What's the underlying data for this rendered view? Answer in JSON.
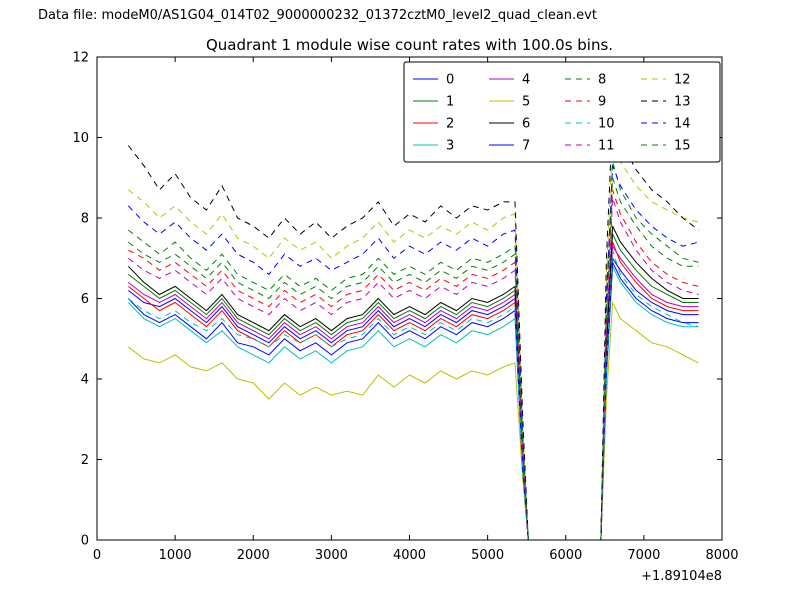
{
  "header": {
    "data_file": "Data file: modeM0/AS1G04_014T02_9000000232_01372cztM0_level2_quad_clean.evt"
  },
  "chart_data": {
    "type": "line",
    "title": "Quadrant 1 module wise count rates with 100.0s bins.",
    "xlabel": "",
    "ylabel": "",
    "xlim": [
      0,
      8000
    ],
    "ylim": [
      0,
      12
    ],
    "x_ticks": [
      0,
      1000,
      2000,
      3000,
      4000,
      5000,
      6000,
      7000,
      8000
    ],
    "x_tick_labels": [
      "0",
      "1000",
      "2000",
      "3000",
      "4000",
      "5000",
      "6000",
      "7000",
      "8000"
    ],
    "y_ticks": [
      0,
      2,
      4,
      6,
      8,
      10,
      12
    ],
    "y_tick_labels": [
      "0",
      "2",
      "4",
      "6",
      "8",
      "10",
      "12"
    ],
    "x_offset_label": "+1.89104e8",
    "grid": false,
    "legend_position": "upper center",
    "legend_columns": 4,
    "x": [
      400,
      600,
      800,
      1000,
      1200,
      1400,
      1600,
      1800,
      2000,
      2200,
      2400,
      2600,
      2800,
      3000,
      3200,
      3400,
      3600,
      3800,
      4000,
      4200,
      4400,
      4600,
      4800,
      5000,
      5200,
      5350,
      5450,
      5520,
      5800,
      6200,
      6450,
      6520,
      6600,
      6700,
      6900,
      7100,
      7300,
      7500,
      7700
    ],
    "series": [
      {
        "name": "0",
        "color": "#0000FF",
        "style": "solid",
        "values": [
          6.2,
          5.9,
          5.8,
          6.0,
          5.7,
          5.4,
          5.8,
          5.3,
          5.1,
          4.9,
          5.3,
          5.0,
          5.2,
          4.9,
          5.2,
          5.3,
          5.7,
          5.3,
          5.5,
          5.3,
          5.6,
          5.4,
          5.7,
          5.6,
          5.8,
          6.0,
          1.8,
          0,
          0,
          0,
          0,
          4.4,
          7.0,
          6.7,
          6.2,
          5.9,
          5.7,
          5.6,
          5.6
        ]
      },
      {
        "name": "1",
        "color": "#008000",
        "style": "solid",
        "values": [
          6.6,
          6.3,
          6.0,
          6.2,
          5.9,
          5.6,
          6.0,
          5.5,
          5.3,
          5.1,
          5.5,
          5.2,
          5.4,
          5.1,
          5.4,
          5.5,
          5.9,
          5.5,
          5.7,
          5.5,
          5.8,
          5.6,
          5.9,
          5.8,
          6.0,
          6.2,
          1.9,
          0,
          0,
          0,
          0,
          4.7,
          7.6,
          7.2,
          6.7,
          6.3,
          6.1,
          5.9,
          5.9
        ]
      },
      {
        "name": "2",
        "color": "#FF0000",
        "style": "solid",
        "values": [
          6.3,
          6.0,
          5.7,
          5.9,
          5.6,
          5.3,
          5.7,
          5.2,
          5.0,
          4.8,
          5.2,
          4.9,
          5.1,
          4.8,
          5.1,
          5.2,
          5.6,
          5.2,
          5.4,
          5.2,
          5.5,
          5.3,
          5.6,
          5.5,
          5.7,
          5.9,
          1.8,
          0,
          0,
          0,
          0,
          4.5,
          7.4,
          6.9,
          6.4,
          6.0,
          5.8,
          5.7,
          5.7
        ]
      },
      {
        "name": "3",
        "color": "#00BFBF",
        "style": "solid",
        "values": [
          5.9,
          5.5,
          5.3,
          5.5,
          5.2,
          4.9,
          5.2,
          4.8,
          4.6,
          4.4,
          4.8,
          4.5,
          4.7,
          4.4,
          4.7,
          4.8,
          5.2,
          4.8,
          5.0,
          4.8,
          5.1,
          4.9,
          5.2,
          5.1,
          5.3,
          5.5,
          1.6,
          0,
          0,
          0,
          0,
          4.0,
          6.8,
          6.4,
          5.9,
          5.6,
          5.4,
          5.3,
          5.3
        ]
      },
      {
        "name": "4",
        "color": "#BF00BF",
        "style": "solid",
        "values": [
          6.4,
          6.1,
          5.9,
          6.1,
          5.8,
          5.5,
          5.9,
          5.4,
          5.2,
          5.0,
          5.4,
          5.1,
          5.3,
          5.0,
          5.3,
          5.4,
          5.8,
          5.4,
          5.6,
          5.4,
          5.7,
          5.5,
          5.8,
          5.7,
          5.9,
          6.1,
          1.9,
          0,
          0,
          0,
          0,
          4.6,
          7.3,
          7.0,
          6.5,
          6.1,
          5.9,
          5.8,
          5.8
        ]
      },
      {
        "name": "5",
        "color": "#BFBF00",
        "style": "solid",
        "values": [
          4.8,
          4.5,
          4.4,
          4.6,
          4.3,
          4.2,
          4.4,
          4.0,
          3.9,
          3.5,
          3.9,
          3.6,
          3.8,
          3.6,
          3.7,
          3.6,
          4.1,
          3.8,
          4.1,
          3.9,
          4.2,
          4.0,
          4.2,
          4.1,
          4.3,
          4.4,
          1.5,
          0,
          0,
          0,
          0,
          3.5,
          5.9,
          5.5,
          5.2,
          4.9,
          4.8,
          4.6,
          4.4
        ]
      },
      {
        "name": "6",
        "color": "#000000",
        "style": "solid",
        "values": [
          6.8,
          6.4,
          6.1,
          6.3,
          6.0,
          5.7,
          6.1,
          5.6,
          5.4,
          5.2,
          5.6,
          5.3,
          5.5,
          5.2,
          5.5,
          5.6,
          6.0,
          5.6,
          5.8,
          5.6,
          5.9,
          5.7,
          6.0,
          5.9,
          6.1,
          6.3,
          2.0,
          0,
          0,
          0,
          0,
          4.8,
          7.8,
          7.4,
          6.9,
          6.5,
          6.2,
          6.0,
          6.0
        ]
      },
      {
        "name": "7",
        "color": "#0000FF",
        "style": "solid",
        "values": [
          6.0,
          5.6,
          5.4,
          5.6,
          5.3,
          5.0,
          5.4,
          4.9,
          4.8,
          4.6,
          5.0,
          4.7,
          4.9,
          4.6,
          4.9,
          5.0,
          5.4,
          5.0,
          5.2,
          5.0,
          5.3,
          5.1,
          5.4,
          5.3,
          5.5,
          5.7,
          1.7,
          0,
          0,
          0,
          0,
          4.2,
          6.9,
          6.5,
          6.0,
          5.7,
          5.5,
          5.4,
          5.4
        ]
      },
      {
        "name": "8",
        "color": "#008000",
        "style": "dashed",
        "values": [
          7.7,
          7.4,
          7.1,
          7.4,
          7.0,
          6.7,
          7.1,
          6.6,
          6.4,
          6.2,
          6.6,
          6.3,
          6.5,
          6.2,
          6.5,
          6.6,
          7.0,
          6.6,
          6.8,
          6.6,
          6.9,
          6.7,
          7.0,
          6.9,
          7.1,
          7.3,
          2.4,
          0,
          0,
          0,
          0,
          5.8,
          9.4,
          8.7,
          8.0,
          7.6,
          7.3,
          7.0,
          6.9
        ]
      },
      {
        "name": "9",
        "color": "#FF0000",
        "style": "dashed",
        "values": [
          7.2,
          7.0,
          6.7,
          6.9,
          6.6,
          6.3,
          6.7,
          6.2,
          6.0,
          5.8,
          6.2,
          5.9,
          6.1,
          5.8,
          6.1,
          6.2,
          6.6,
          6.2,
          6.4,
          6.2,
          6.5,
          6.3,
          6.6,
          6.5,
          6.7,
          6.9,
          2.2,
          0,
          0,
          0,
          0,
          5.3,
          8.7,
          8.1,
          7.4,
          6.9,
          6.6,
          6.4,
          6.3
        ]
      },
      {
        "name": "10",
        "color": "#00BFBF",
        "style": "dashed",
        "values": [
          6.0,
          5.7,
          5.5,
          5.7,
          5.4,
          5.2,
          5.5,
          5.1,
          5.0,
          4.8,
          5.1,
          4.9,
          5.1,
          4.8,
          5.0,
          5.1,
          5.5,
          5.1,
          5.3,
          5.1,
          5.4,
          5.2,
          5.5,
          5.4,
          5.6,
          5.8,
          1.7,
          0,
          0,
          0,
          0,
          4.3,
          7.2,
          6.6,
          6.1,
          5.8,
          5.6,
          5.4,
          5.3
        ]
      },
      {
        "name": "11",
        "color": "#BF00BF",
        "style": "dashed",
        "values": [
          7.0,
          6.7,
          6.5,
          6.7,
          6.4,
          6.1,
          6.5,
          6.0,
          5.8,
          5.6,
          6.0,
          5.7,
          5.9,
          5.6,
          5.9,
          6.0,
          6.4,
          6.0,
          6.2,
          6.0,
          6.3,
          6.1,
          6.4,
          6.3,
          6.5,
          6.7,
          2.1,
          0,
          0,
          0,
          0,
          5.1,
          8.5,
          7.9,
          7.2,
          6.7,
          6.4,
          6.2,
          6.1
        ]
      },
      {
        "name": "12",
        "color": "#BFBF00",
        "style": "dashed",
        "values": [
          8.7,
          8.4,
          8.0,
          8.3,
          7.9,
          7.6,
          8.1,
          7.5,
          7.3,
          7.0,
          7.5,
          7.2,
          7.4,
          7.0,
          7.3,
          7.5,
          7.9,
          7.4,
          7.7,
          7.5,
          7.8,
          7.6,
          7.9,
          7.7,
          8.0,
          8.1,
          2.8,
          0,
          0,
          0,
          0,
          6.5,
          10.1,
          9.4,
          8.8,
          8.4,
          8.2,
          8.0,
          7.9
        ]
      },
      {
        "name": "13",
        "color": "#000000",
        "style": "dashed",
        "values": [
          9.8,
          9.3,
          8.7,
          9.1,
          8.5,
          8.2,
          8.8,
          8.0,
          7.8,
          7.5,
          8.0,
          7.6,
          7.9,
          7.5,
          7.8,
          8.0,
          8.4,
          7.8,
          8.1,
          7.9,
          8.3,
          8.0,
          8.3,
          8.2,
          8.4,
          8.4,
          3.0,
          0,
          0,
          0,
          0,
          7.0,
          10.5,
          9.9,
          9.2,
          8.7,
          8.4,
          8.0,
          7.7
        ]
      },
      {
        "name": "14",
        "color": "#0000FF",
        "style": "dashed",
        "values": [
          8.3,
          7.9,
          7.6,
          7.9,
          7.5,
          7.2,
          7.6,
          7.1,
          6.9,
          6.6,
          7.1,
          6.8,
          7.0,
          6.7,
          6.9,
          7.1,
          7.5,
          7.0,
          7.3,
          7.1,
          7.4,
          7.2,
          7.5,
          7.3,
          7.6,
          7.7,
          2.6,
          0,
          0,
          0,
          0,
          6.0,
          9.3,
          8.8,
          8.2,
          7.8,
          7.5,
          7.3,
          7.4
        ]
      },
      {
        "name": "15",
        "color": "#008000",
        "style": "dashed",
        "values": [
          7.4,
          7.1,
          6.9,
          7.1,
          6.8,
          6.5,
          6.9,
          6.4,
          6.2,
          6.0,
          6.4,
          6.1,
          6.3,
          6.0,
          6.3,
          6.4,
          6.8,
          6.4,
          6.6,
          6.4,
          6.7,
          6.5,
          6.8,
          6.7,
          6.9,
          7.1,
          2.3,
          0,
          0,
          0,
          0,
          5.5,
          9.0,
          8.4,
          7.8,
          7.3,
          7.0,
          6.8,
          6.8
        ]
      }
    ]
  }
}
